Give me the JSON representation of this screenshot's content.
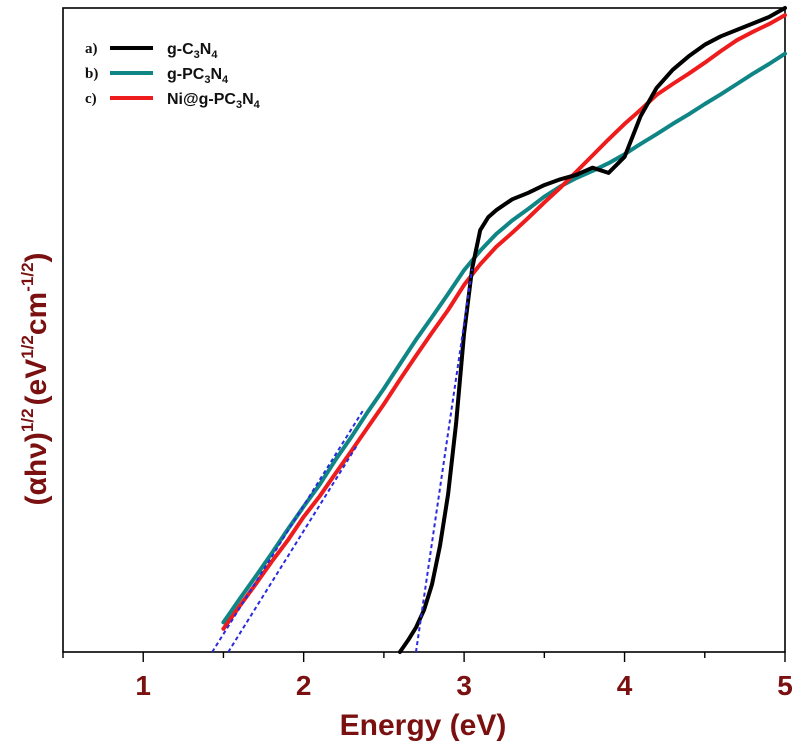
{
  "chart_data": {
    "type": "line",
    "title": "",
    "xlabel": "Energy (eV)",
    "ylabel": {
      "prefix": "(αhν)",
      "prefix_sup": "1/2",
      "unit_open": "(eV",
      "unit_sup1": "1/2",
      "unit_mid": "cm",
      "unit_sup2": "-1/2",
      "unit_close": ")"
    },
    "xlim": [
      0.5,
      5.0
    ],
    "ylim": [
      0,
      100
    ],
    "x_ticks": [
      1,
      2,
      3,
      4,
      5
    ],
    "x_tick_labels": [
      "1",
      "2",
      "3",
      "4",
      "5"
    ],
    "y_tick_labels": false,
    "grid": false,
    "legend": {
      "placement": "top-left",
      "entries": [
        {
          "letter": "a)",
          "base": "g-C",
          "sub1": "3",
          "mid": "N",
          "sub2": "4",
          "color": "#000000"
        },
        {
          "letter": "b)",
          "base": "g-PC",
          "sub1": "3",
          "mid": "N",
          "sub2": "4",
          "color": "#0f8585"
        },
        {
          "letter": "c)",
          "base": "Ni@g-PC",
          "sub1": "3",
          "mid": "N",
          "sub2": "4",
          "color": "#ee1c1c"
        }
      ]
    },
    "series": [
      {
        "name": "g-C3N4",
        "color": "#000000",
        "x": [
          2.6,
          2.65,
          2.7,
          2.75,
          2.8,
          2.85,
          2.9,
          2.95,
          3.0,
          3.05,
          3.1,
          3.15,
          3.2,
          3.3,
          3.4,
          3.5,
          3.6,
          3.7,
          3.8,
          3.9,
          4.0,
          4.1,
          4.2,
          4.3,
          4.4,
          4.5,
          4.6,
          4.7,
          4.8,
          4.9,
          5.0
        ],
        "y": [
          0,
          1.8,
          3.8,
          6.5,
          10.5,
          16.5,
          24.5,
          35.5,
          49.5,
          59.5,
          65.5,
          67.5,
          68.6,
          70.3,
          71.3,
          72.5,
          73.4,
          74.1,
          75.2,
          74.4,
          76.9,
          83.2,
          87.6,
          90.4,
          92.5,
          94.3,
          95.6,
          96.6,
          97.6,
          98.6,
          100.0
        ]
      },
      {
        "name": "g-PC3N4",
        "color": "#0f8585",
        "x": [
          1.5,
          1.6,
          1.7,
          1.8,
          1.9,
          2.0,
          2.1,
          2.2,
          2.3,
          2.4,
          2.5,
          2.6,
          2.7,
          2.8,
          2.9,
          3.0,
          3.1,
          3.2,
          3.3,
          3.4,
          3.5,
          3.6,
          3.7,
          3.8,
          3.9,
          4.0,
          4.1,
          4.2,
          4.3,
          4.4,
          4.5,
          4.6,
          4.7,
          4.8,
          4.9,
          5.0
        ],
        "y": [
          4.6,
          8.2,
          11.7,
          15.3,
          19.0,
          22.6,
          26.0,
          29.9,
          33.5,
          37.3,
          40.9,
          44.7,
          48.5,
          52.0,
          55.6,
          59.3,
          62.3,
          64.9,
          67.0,
          68.8,
          70.7,
          72.3,
          73.6,
          74.7,
          75.9,
          77.3,
          78.9,
          80.4,
          82.0,
          83.5,
          85.1,
          86.6,
          88.2,
          89.8,
          91.3,
          92.9
        ]
      },
      {
        "name": "Ni@g-PC3N4",
        "color": "#ee1c1c",
        "x": [
          1.5,
          1.6,
          1.7,
          1.8,
          1.9,
          2.0,
          2.1,
          2.2,
          2.3,
          2.4,
          2.5,
          2.6,
          2.7,
          2.8,
          2.9,
          3.0,
          3.1,
          3.2,
          3.3,
          3.4,
          3.5,
          3.6,
          3.7,
          3.8,
          3.9,
          4.0,
          4.1,
          4.2,
          4.3,
          4.4,
          4.5,
          4.6,
          4.7,
          4.8,
          4.9,
          5.0
        ],
        "y": [
          3.6,
          7.1,
          10.5,
          14.0,
          17.3,
          21.0,
          24.2,
          27.8,
          31.3,
          34.9,
          38.5,
          42.3,
          46.0,
          49.6,
          53.1,
          57.0,
          60.2,
          62.9,
          65.1,
          67.4,
          69.8,
          72.1,
          74.6,
          77.1,
          79.6,
          82.0,
          84.2,
          86.5,
          88.2,
          89.8,
          91.5,
          93.3,
          95.0,
          96.3,
          97.5,
          98.9
        ]
      }
    ],
    "tangents": [
      {
        "color": "#2a2adf",
        "x": [
          1.43,
          2.37
        ],
        "y": [
          0,
          37.5
        ]
      },
      {
        "color": "#2a2adf",
        "x": [
          1.53,
          2.33
        ],
        "y": [
          0,
          32.0
        ]
      },
      {
        "color": "#2a2adf",
        "x": [
          2.7,
          3.05
        ],
        "y": [
          0,
          59.5
        ]
      }
    ]
  }
}
